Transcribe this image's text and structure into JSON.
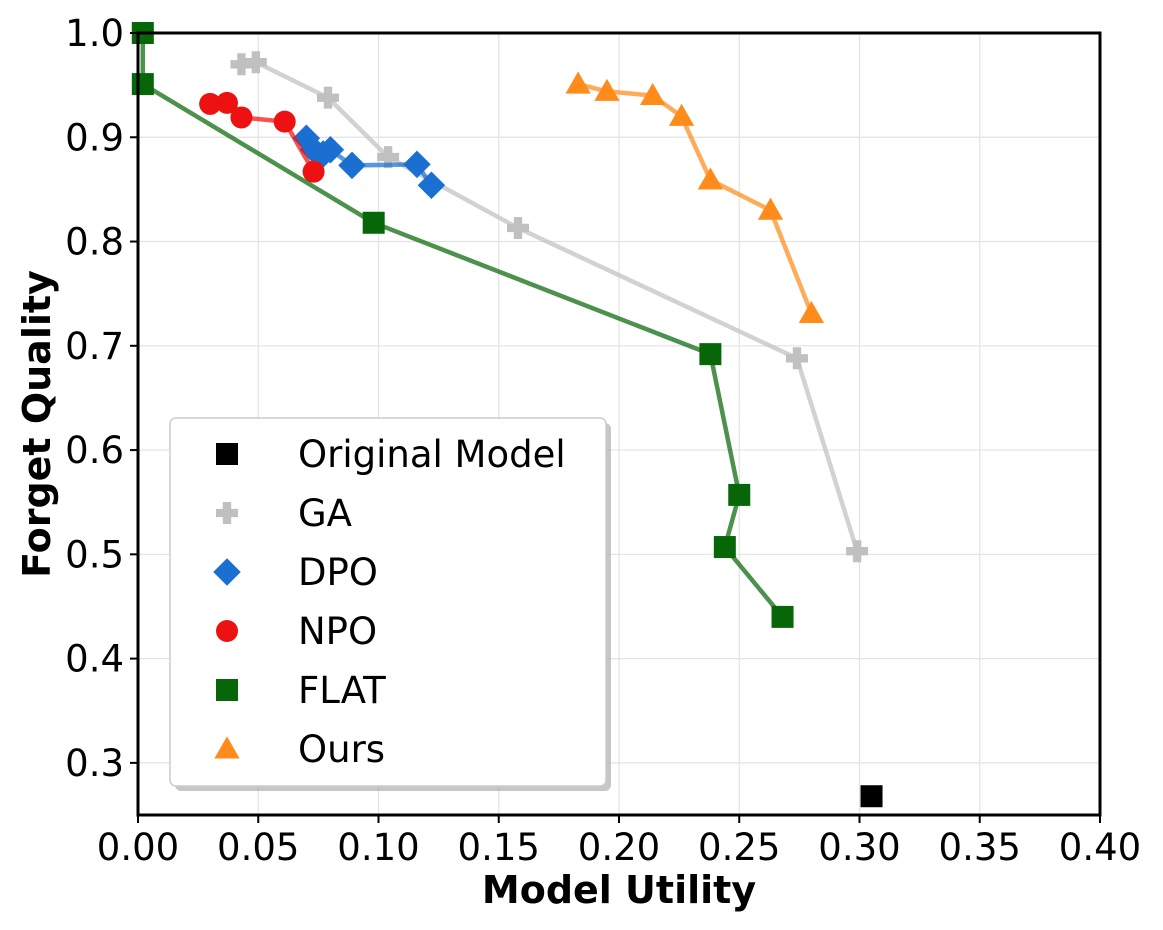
{
  "chart_data": {
    "type": "line",
    "title": "",
    "xlabel": "Model Utility",
    "ylabel": "Forget Quality",
    "xlim": [
      0.0,
      0.4
    ],
    "ylim": [
      0.25,
      1.0
    ],
    "xticks": [
      "0.00",
      "0.05",
      "0.10",
      "0.15",
      "0.20",
      "0.25",
      "0.30",
      "0.35",
      "0.40"
    ],
    "yticks": [
      "0.3",
      "0.4",
      "0.5",
      "0.6",
      "0.7",
      "0.8",
      "0.9",
      "1.0"
    ],
    "grid": true,
    "legend_position": "lower-left",
    "series": [
      {
        "name": "Original Model",
        "color": "#000000",
        "marker": "square",
        "line": false,
        "x": [
          0.305
        ],
        "y": [
          0.268
        ]
      },
      {
        "name": "GA",
        "color": "#c0c0c0",
        "marker": "plus",
        "line": true,
        "x": [
          0.043,
          0.049,
          0.079,
          0.104,
          0.158,
          0.274,
          0.299
        ],
        "y": [
          0.97,
          0.972,
          0.938,
          0.881,
          0.813,
          0.688,
          0.503
        ]
      },
      {
        "name": "DPO",
        "color": "#1a6fd0",
        "marker": "diamond",
        "line": true,
        "x": [
          0.07,
          0.073,
          0.077,
          0.08,
          0.089,
          0.116,
          0.122
        ],
        "y": [
          0.899,
          0.888,
          0.884,
          0.888,
          0.873,
          0.874,
          0.854
        ]
      },
      {
        "name": "NPO",
        "color": "#ee1111",
        "marker": "circle",
        "line": true,
        "x": [
          0.03,
          0.037,
          0.043,
          0.061,
          0.073
        ],
        "y": [
          0.932,
          0.933,
          0.919,
          0.915,
          0.867
        ]
      },
      {
        "name": "FLAT",
        "color": "#076607",
        "marker": "square",
        "line": true,
        "x": [
          0.002,
          0.002,
          0.098,
          0.238,
          0.25,
          0.244,
          0.268
        ],
        "y": [
          1.0,
          0.951,
          0.818,
          0.692,
          0.557,
          0.507,
          0.44
        ]
      },
      {
        "name": "Ours",
        "color": "#ff8c1a",
        "marker": "triangle",
        "line": true,
        "x": [
          0.183,
          0.195,
          0.214,
          0.226,
          0.238,
          0.263,
          0.28
        ],
        "y": [
          0.951,
          0.944,
          0.94,
          0.92,
          0.859,
          0.83,
          0.731
        ]
      }
    ]
  }
}
